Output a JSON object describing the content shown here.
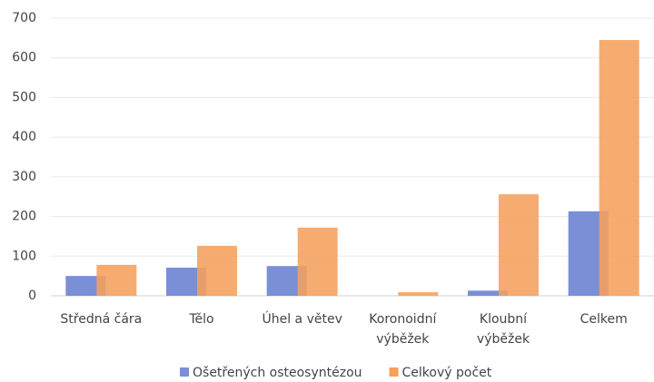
{
  "chart_data": {
    "type": "bar",
    "categories": [
      "Středná čára",
      "Tělo",
      "Úhel a větev",
      "Koronoidní\nvýběžek",
      "Kloubní\nvýběžek",
      "Celkem"
    ],
    "series": [
      {
        "name": "Ošetřených osteosyntézou",
        "color": "#7b8fd6",
        "values": [
          50,
          71,
          75,
          0,
          13,
          213
        ]
      },
      {
        "name": "Celkový počet",
        "color": "#f5a05c",
        "values": [
          78,
          126,
          172,
          9,
          256,
          645
        ]
      }
    ],
    "ylim": [
      0,
      700
    ],
    "yticks": [
      0,
      100,
      200,
      300,
      400,
      500,
      600,
      700
    ],
    "grid": true,
    "legend": "bottom"
  }
}
